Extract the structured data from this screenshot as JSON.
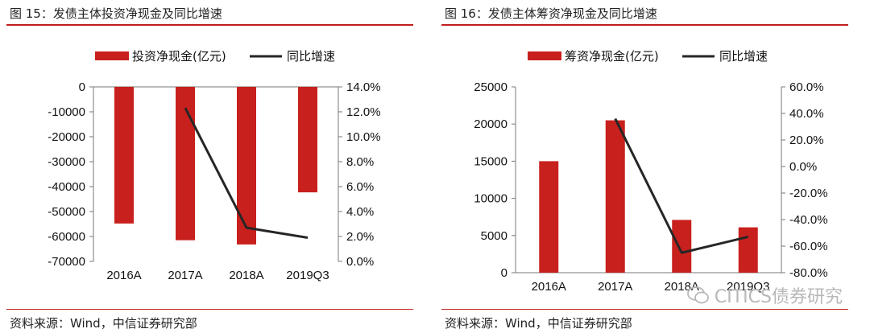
{
  "figures": [
    {
      "title": "图 15：发债主体投资净现金及同比增速",
      "source": "资料来源：Wind，中信证券研究部",
      "bar_color": "#c8201d",
      "line_color": "#262626"
    },
    {
      "title": "图 16：发债主体筹资净现金及同比增速",
      "source": "资料来源：Wind，中信证券研究部",
      "bar_color": "#c8201d",
      "line_color": "#262626"
    }
  ],
  "watermark": "CITICS债券研究",
  "chart_data": [
    {
      "type": "bar",
      "categories": [
        "2016A",
        "2017A",
        "2018A",
        "2019Q3"
      ],
      "series": [
        {
          "name": "投资净现金(亿元)",
          "type": "bar",
          "axis": "left",
          "values": [
            -54800,
            -61500,
            -63200,
            -42300
          ]
        },
        {
          "name": "同比增速",
          "type": "line",
          "axis": "right",
          "values": [
            null,
            12.3,
            2.7,
            1.9
          ]
        }
      ],
      "ylim_left": [
        -70000,
        0
      ],
      "yticks_left": [
        "0",
        "-10000",
        "-20000",
        "-30000",
        "-40000",
        "-50000",
        "-60000",
        "-70000"
      ],
      "ylim_right": [
        0,
        14
      ],
      "yticks_right": [
        "14.0%",
        "12.0%",
        "10.0%",
        "8.0%",
        "6.0%",
        "4.0%",
        "2.0%",
        "0.0%"
      ],
      "legend": "top-center",
      "grid": false
    },
    {
      "type": "bar",
      "categories": [
        "2016A",
        "2017A",
        "2018A",
        "2019Q3"
      ],
      "series": [
        {
          "name": "筹资净现金(亿元)",
          "type": "bar",
          "axis": "left",
          "values": [
            15000,
            20500,
            7100,
            6100
          ]
        },
        {
          "name": "同比增速",
          "type": "line",
          "axis": "right",
          "values": [
            null,
            36.0,
            -65.0,
            -53.0
          ]
        }
      ],
      "ylim_left": [
        0,
        25000
      ],
      "yticks_left": [
        "25000",
        "20000",
        "15000",
        "10000",
        "5000",
        "0"
      ],
      "ylim_right": [
        -80,
        60
      ],
      "yticks_right": [
        "60.0%",
        "40.0%",
        "20.0%",
        "0.0%",
        "-20.0%",
        "-40.0%",
        "-60.0%",
        "-80.0%"
      ],
      "legend": "top-center",
      "grid": false
    }
  ]
}
